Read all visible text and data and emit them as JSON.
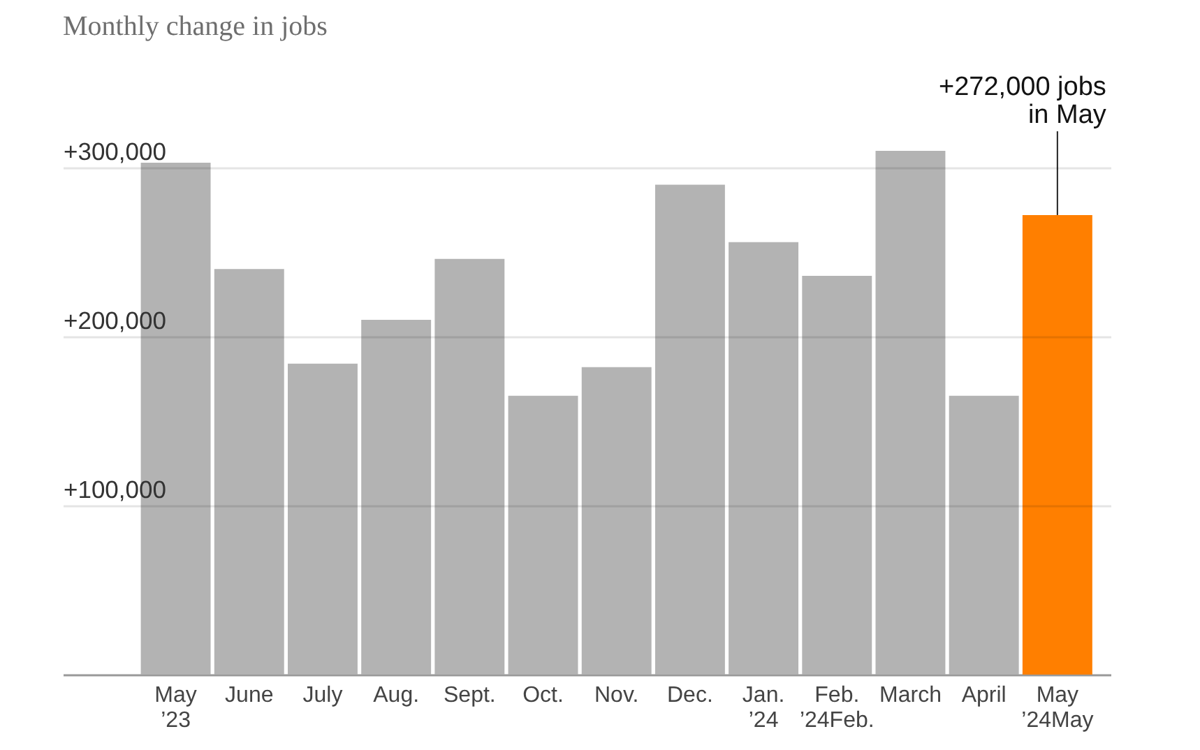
{
  "chart_data": {
    "type": "bar",
    "title": "Monthly change in jobs",
    "categories": [
      "May\n’23",
      "June",
      "July",
      "Aug.",
      "Sept.",
      "Oct.",
      "Nov.",
      "Dec.",
      "Jan.\n’24",
      "Feb.\n’24Feb.",
      "March",
      "April",
      "May\n’24May"
    ],
    "values": [
      303000,
      240000,
      184000,
      210000,
      246000,
      165000,
      182000,
      290000,
      256000,
      236000,
      310000,
      165000,
      272000
    ],
    "colors": [
      "#b3b3b3",
      "#b3b3b3",
      "#b3b3b3",
      "#b3b3b3",
      "#b3b3b3",
      "#b3b3b3",
      "#b3b3b3",
      "#b3b3b3",
      "#b3b3b3",
      "#b3b3b3",
      "#b3b3b3",
      "#b3b3b3",
      "#ff7f00"
    ],
    "ylim": [
      0,
      310000
    ],
    "yticks": [
      {
        "value": 100000,
        "label": "+100,000"
      },
      {
        "value": 200000,
        "label": "+200,000"
      },
      {
        "value": 300000,
        "label": "+300,000"
      }
    ],
    "grid": "y",
    "annotations": [
      {
        "text": "+272,000 jobs\nin May",
        "x": "May\n’24May",
        "y": 272000
      }
    ]
  }
}
